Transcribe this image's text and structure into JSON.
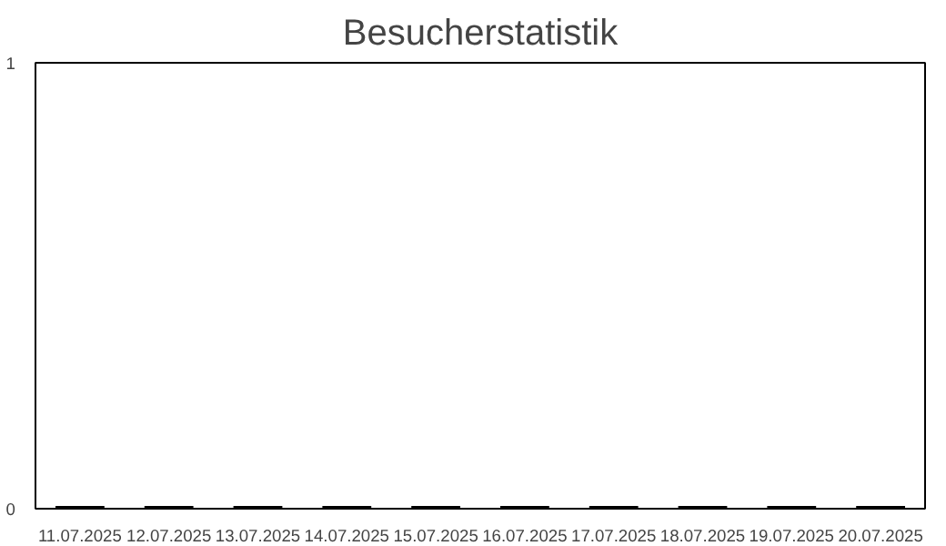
{
  "chart_data": {
    "type": "bar",
    "title": "Besucherstatistik",
    "categories": [
      "11.07.2025",
      "12.07.2025",
      "13.07.2025",
      "14.07.2025",
      "15.07.2025",
      "16.07.2025",
      "17.07.2025",
      "18.07.2025",
      "19.07.2025",
      "20.07.2025"
    ],
    "values": [
      0,
      0,
      0,
      0,
      0,
      0,
      0,
      0,
      0,
      0
    ],
    "color": "#000000",
    "ylim": [
      0,
      1
    ],
    "yticks": [
      0,
      1
    ],
    "grid": false
  }
}
